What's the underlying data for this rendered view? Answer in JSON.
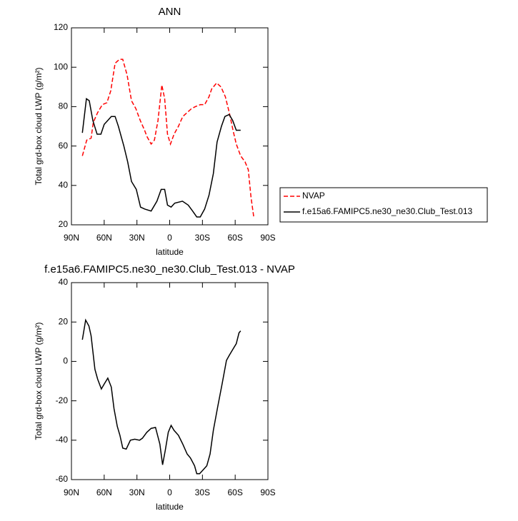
{
  "chart_data": [
    {
      "type": "line",
      "title": "ANN",
      "xlabel": "latitude",
      "ylabel": "Total grd-box cloud LWP (g/m²)",
      "xlim": [
        90,
        -90
      ],
      "xticks": [
        {
          "value": 90,
          "label": "90N"
        },
        {
          "value": 60,
          "label": "60N"
        },
        {
          "value": 30,
          "label": "30N"
        },
        0,
        {
          "value": -30,
          "label": "30S"
        },
        {
          "value": -60,
          "label": "60S"
        },
        {
          "value": -90,
          "label": "90S"
        }
      ],
      "ylim": [
        20,
        120
      ],
      "yticks": [
        20,
        40,
        60,
        80,
        100,
        120
      ],
      "legend": "right",
      "series": [
        {
          "name": "NVAP",
          "color": "#ff0000",
          "dash": true,
          "x": [
            80,
            76,
            72,
            70,
            66,
            61.7,
            57.5,
            54,
            50,
            46,
            43,
            39,
            35,
            31,
            27,
            23,
            21,
            17,
            14,
            10.7,
            7.2,
            4.6,
            2,
            -0.7,
            -4,
            -8,
            -12,
            -16,
            -20,
            -23.5,
            -28,
            -32,
            -36,
            -38.5,
            -43,
            -47,
            -51,
            -55,
            -58,
            -61,
            -65,
            -69,
            -72,
            -74.5,
            -77
          ],
          "values": [
            55,
            63,
            64,
            72,
            77,
            81,
            82,
            88,
            102,
            104,
            104,
            96,
            83,
            79,
            73,
            68,
            65,
            61,
            63,
            73,
            91,
            84,
            66,
            61,
            66,
            70,
            75,
            77,
            79,
            80,
            81,
            81,
            85,
            89,
            92,
            90,
            85,
            76,
            68,
            61,
            55,
            52,
            48,
            34,
            24
          ]
        },
        {
          "name": "f.e15a6.FAMIPC5.ne30_ne30.Club_Test.013",
          "color": "#000000",
          "dash": false,
          "x": [
            80,
            76.3,
            73.7,
            70.4,
            66.5,
            63,
            60,
            56.7,
            53.5,
            50,
            47,
            42,
            38.5,
            35,
            30.6,
            26.7,
            22.8,
            17,
            11.7,
            7.8,
            4.6,
            2,
            -1.3,
            -4.6,
            -11.7,
            -17,
            -21,
            -24.8,
            -28,
            -32,
            -36,
            -40,
            -43.4,
            -47.4,
            -50.6,
            -54.5,
            -57.7,
            -61,
            -65
          ],
          "values": [
            66.7,
            84,
            83,
            73,
            66,
            66,
            71,
            73,
            75,
            75,
            70,
            60,
            52,
            42,
            38,
            29,
            28,
            27,
            32,
            38,
            38,
            30,
            29,
            31,
            32,
            30,
            27,
            24,
            24,
            28,
            35,
            46,
            62,
            70,
            75,
            76,
            73,
            68,
            68
          ]
        }
      ]
    },
    {
      "type": "line",
      "title": "f.e15a6.FAMIPC5.ne30_ne30.Club_Test.013 - NVAP",
      "xlabel": "latitude",
      "ylabel": "Total grd-box cloud LWP (g/m²)",
      "xlim": [
        90,
        -90
      ],
      "xticks": [
        {
          "value": 90,
          "label": "90N"
        },
        {
          "value": 60,
          "label": "60N"
        },
        {
          "value": 30,
          "label": "30N"
        },
        0,
        {
          "value": -30,
          "label": "30S"
        },
        {
          "value": -60,
          "label": "60S"
        },
        {
          "value": -90,
          "label": "90S"
        }
      ],
      "ylim": [
        -60,
        40
      ],
      "yticks": [
        -60,
        -40,
        -20,
        0,
        20,
        40
      ],
      "series": [
        {
          "color": "#000000",
          "dash": false,
          "x": [
            80,
            77,
            74,
            72,
            68.5,
            66,
            62.6,
            60,
            56.7,
            53.5,
            51,
            48,
            45.6,
            43,
            39.8,
            36,
            32,
            27.6,
            25,
            21,
            17,
            13,
            9,
            6.5,
            4,
            1.3,
            -1.3,
            -4,
            -8,
            -12,
            -16,
            -19,
            -22.8,
            -24.8,
            -27.4,
            -30.7,
            -34,
            -37,
            -40,
            -44,
            -48,
            -52,
            -54.5,
            -57.7,
            -61,
            -63.5,
            -65
          ],
          "values": [
            11,
            21,
            18,
            13,
            -4,
            -9,
            -14,
            -11.5,
            -8.5,
            -13,
            -24,
            -33,
            -37.5,
            -44,
            -44.5,
            -40,
            -39.5,
            -40,
            -39,
            -36,
            -34,
            -33.5,
            -42,
            -52.5,
            -45,
            -36,
            -32.5,
            -35,
            -37.5,
            -42,
            -47,
            -49,
            -53,
            -57,
            -57,
            -55,
            -53,
            -47,
            -35,
            -23,
            -11.5,
            0.5,
            3,
            6,
            9,
            14.5,
            15.5
          ]
        }
      ]
    }
  ]
}
